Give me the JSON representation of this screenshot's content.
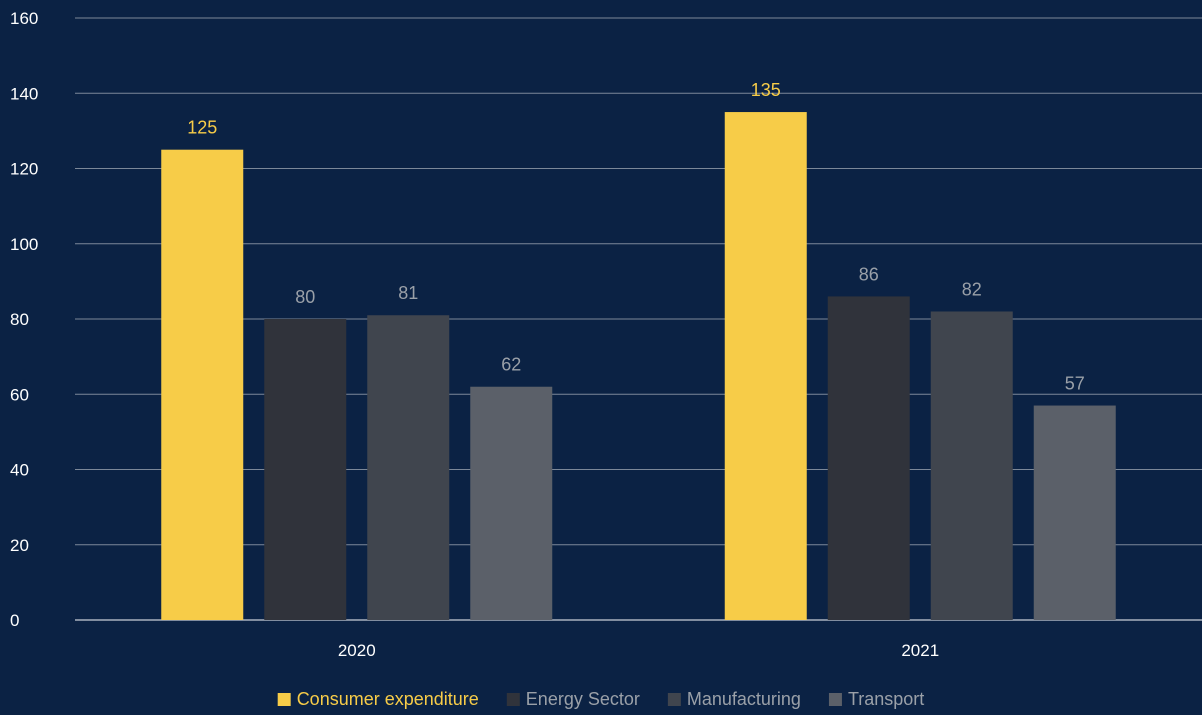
{
  "chart_data": {
    "type": "bar",
    "categories": [
      "2020",
      "2021"
    ],
    "series": [
      {
        "name": "Consumer expenditure",
        "values": [
          125,
          135
        ],
        "color": "#f7cc48",
        "label_color": "#f7cc48"
      },
      {
        "name": "Energy Sector",
        "values": [
          80,
          86
        ],
        "color": "#30333b",
        "label_color": "#9aa0a8"
      },
      {
        "name": "Manufacturing",
        "values": [
          81,
          82
        ],
        "color": "#40454e",
        "label_color": "#9aa0a8"
      },
      {
        "name": "Transport",
        "values": [
          62,
          57
        ],
        "color": "#5b6069",
        "label_color": "#9aa0a8"
      }
    ],
    "yticks": [
      "0",
      "20",
      "40",
      "60",
      "80",
      "100",
      "120",
      "140",
      "160"
    ],
    "ylim": [
      0,
      160
    ],
    "grid": true,
    "legend_position": "bottom",
    "background": "#0b2244"
  }
}
